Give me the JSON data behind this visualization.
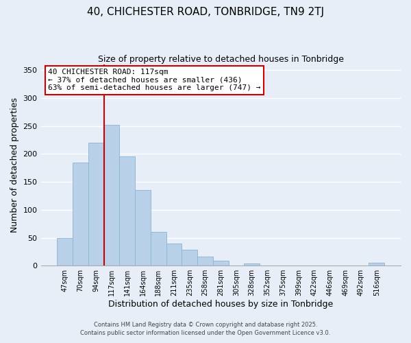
{
  "title": "40, CHICHESTER ROAD, TONBRIDGE, TN9 2TJ",
  "subtitle": "Size of property relative to detached houses in Tonbridge",
  "xlabel": "Distribution of detached houses by size in Tonbridge",
  "ylabel": "Number of detached properties",
  "bar_labels": [
    "47sqm",
    "70sqm",
    "94sqm",
    "117sqm",
    "141sqm",
    "164sqm",
    "188sqm",
    "211sqm",
    "235sqm",
    "258sqm",
    "281sqm",
    "305sqm",
    "328sqm",
    "352sqm",
    "375sqm",
    "399sqm",
    "422sqm",
    "446sqm",
    "469sqm",
    "492sqm",
    "516sqm"
  ],
  "bar_values": [
    50,
    185,
    220,
    252,
    196,
    136,
    60,
    39,
    29,
    16,
    9,
    0,
    4,
    0,
    0,
    0,
    0,
    0,
    0,
    0,
    5
  ],
  "bar_color": "#b8d0e8",
  "bar_edge_color": "#8ab4d4",
  "highlight_bar_index": 3,
  "vline_color": "#cc0000",
  "annotation_title": "40 CHICHESTER ROAD: 117sqm",
  "annotation_line1": "← 37% of detached houses are smaller (436)",
  "annotation_line2": "63% of semi-detached houses are larger (747) →",
  "annotation_box_color": "#ffffff",
  "annotation_box_edge": "#cc0000",
  "ylim": [
    0,
    360
  ],
  "yticks": [
    0,
    50,
    100,
    150,
    200,
    250,
    300,
    350
  ],
  "background_color": "#e8eef8",
  "grid_color": "#ffffff",
  "footer_line1": "Contains HM Land Registry data © Crown copyright and database right 2025.",
  "footer_line2": "Contains public sector information licensed under the Open Government Licence v3.0.",
  "title_fontsize": 11,
  "subtitle_fontsize": 9
}
